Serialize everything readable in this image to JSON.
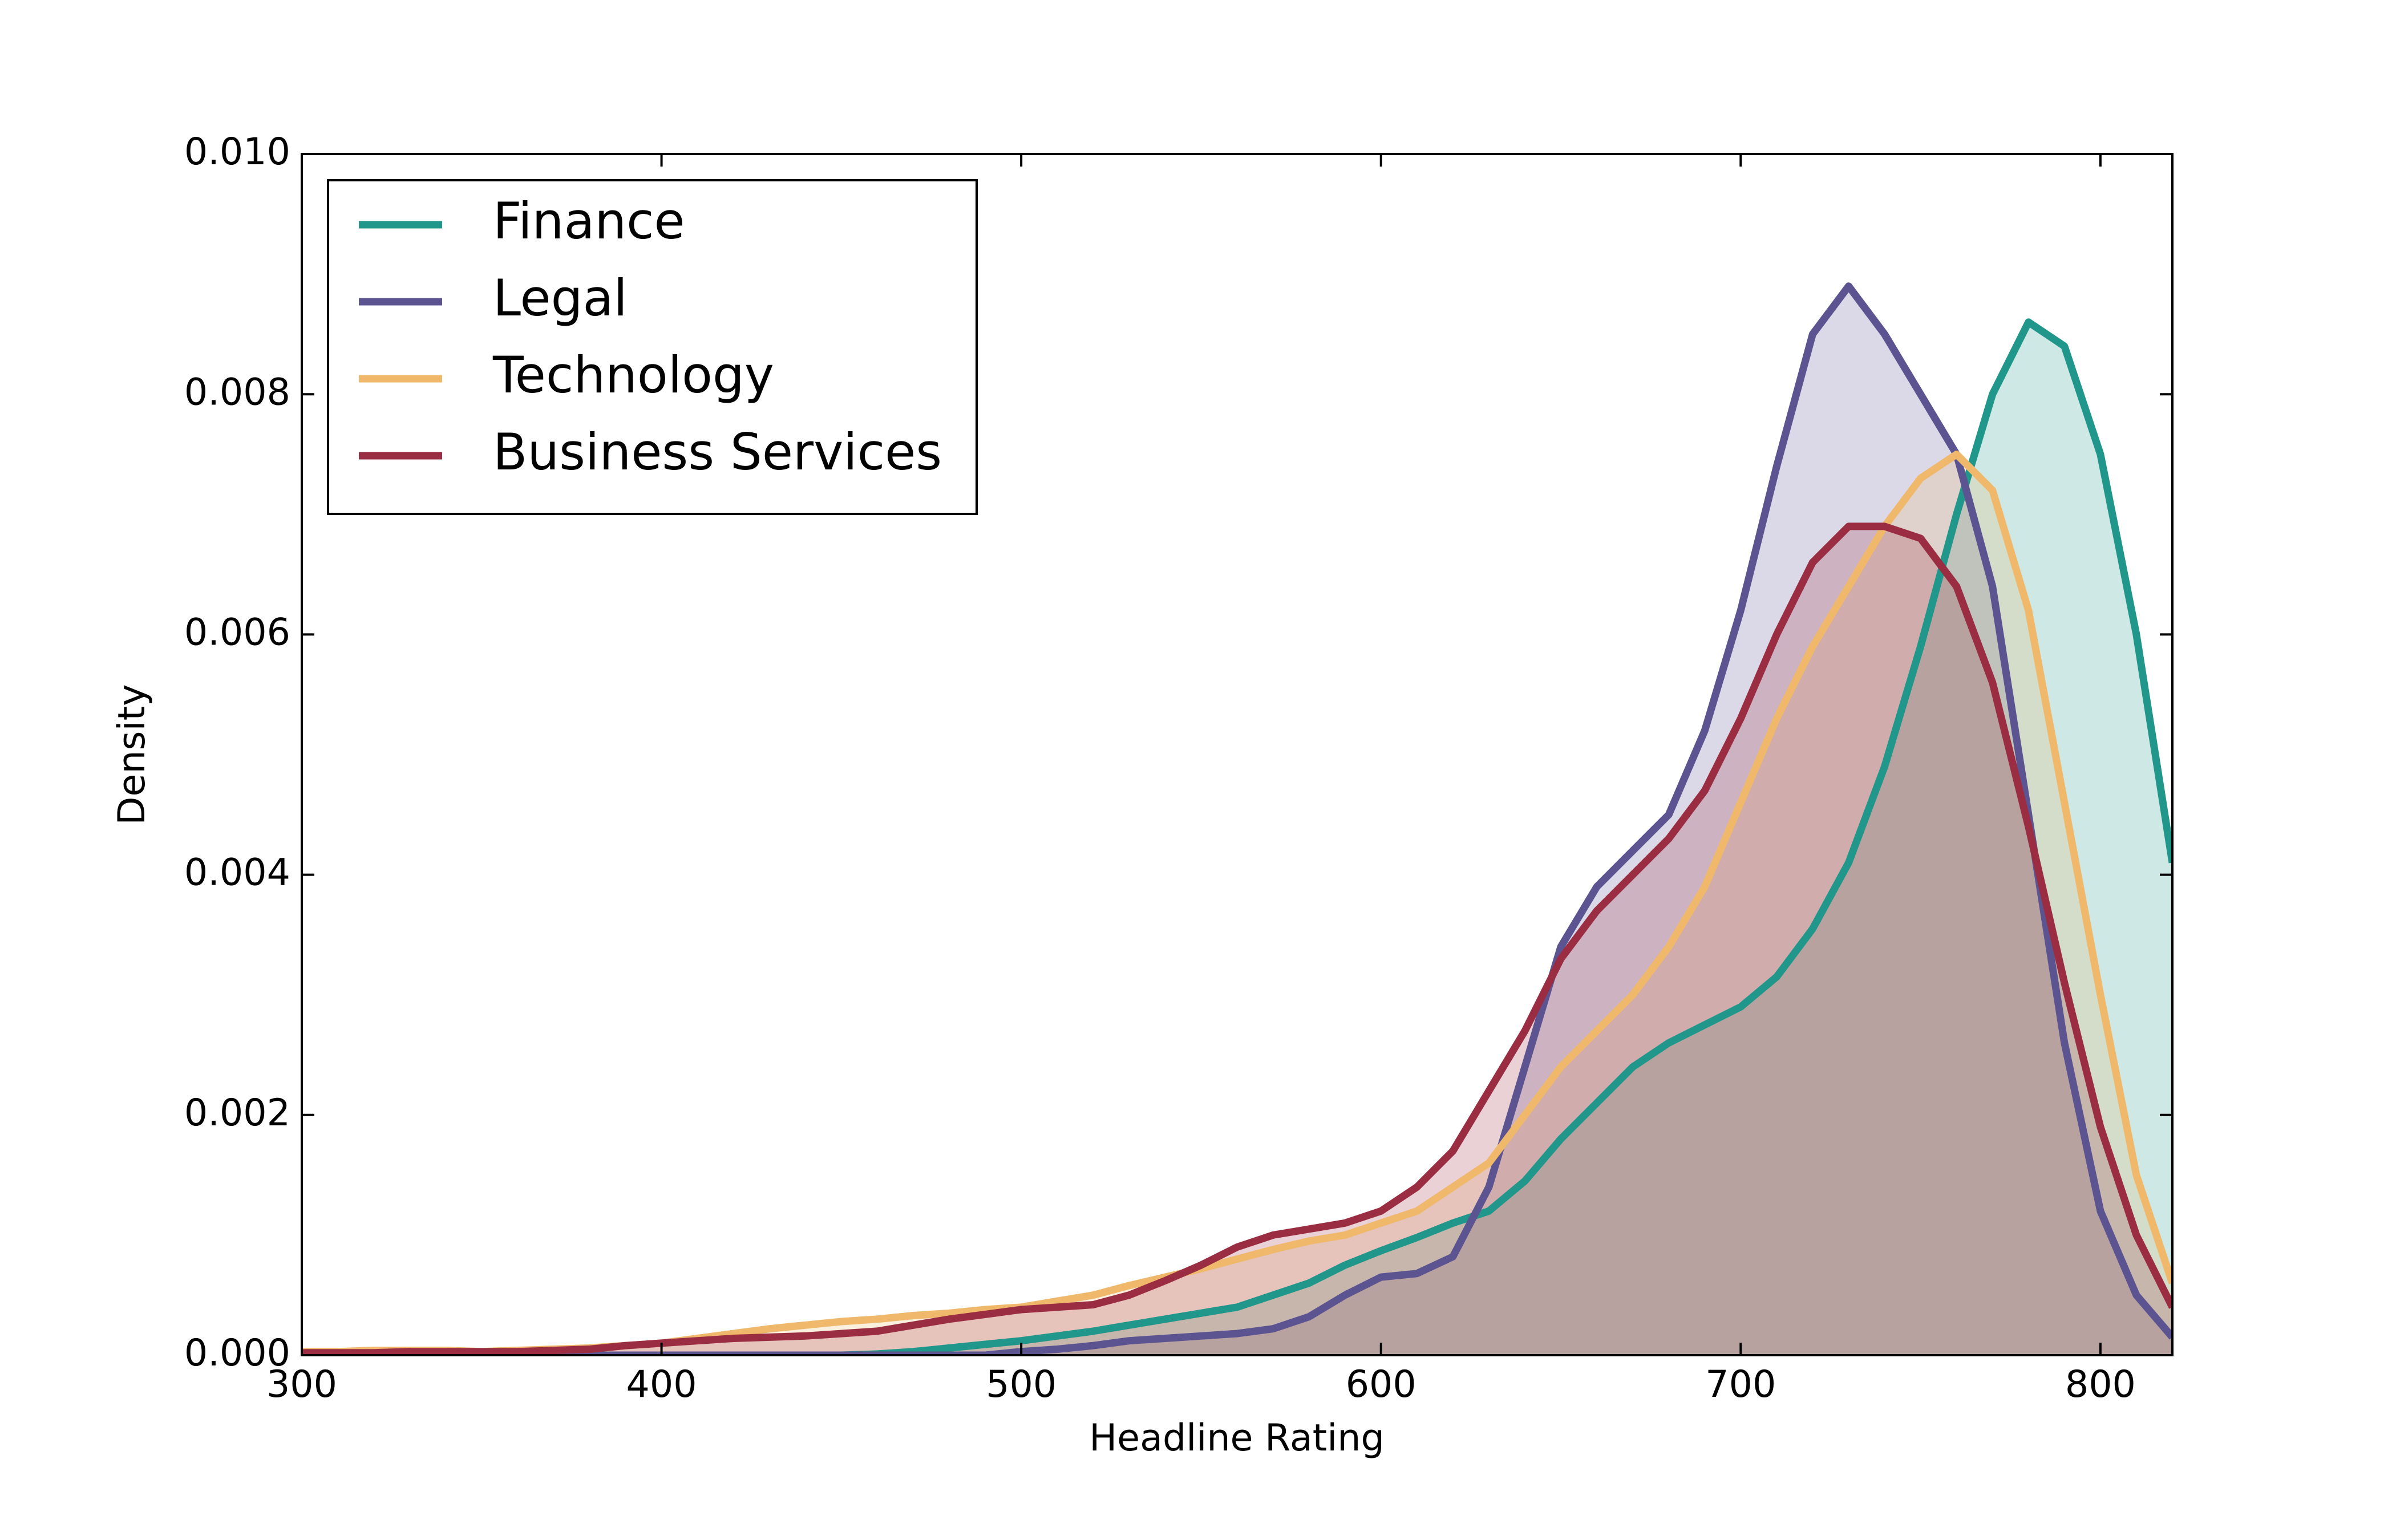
{
  "chart_data": {
    "type": "kde",
    "xlabel": "Headline Rating",
    "ylabel": "Density",
    "x": [
      300,
      310,
      320,
      330,
      340,
      350,
      360,
      370,
      380,
      390,
      400,
      410,
      420,
      430,
      440,
      450,
      460,
      470,
      480,
      490,
      500,
      510,
      520,
      530,
      540,
      550,
      560,
      570,
      580,
      590,
      600,
      610,
      620,
      630,
      640,
      650,
      660,
      670,
      680,
      690,
      700,
      710,
      720,
      730,
      740,
      750,
      760,
      770,
      780,
      790,
      800,
      810,
      820
    ],
    "series": [
      {
        "name": "Finance",
        "color": "#21968a",
        "values": [
          0,
          0,
          0,
          0,
          0,
          0,
          0,
          0,
          0,
          0,
          0,
          0,
          0,
          0,
          0,
          0,
          1e-05,
          3e-05,
          6e-05,
          9e-05,
          0.00012,
          0.00016,
          0.0002,
          0.00025,
          0.0003,
          0.00035,
          0.0004,
          0.0005,
          0.0006,
          0.00075,
          0.00087,
          0.00098,
          0.0011,
          0.0012,
          0.00145,
          0.0018,
          0.0021,
          0.0024,
          0.0026,
          0.00275,
          0.0029,
          0.00315,
          0.00355,
          0.0041,
          0.0049,
          0.0059,
          0.007,
          0.008,
          0.0086,
          0.0084,
          0.0075,
          0.006,
          0.0041
        ]
      },
      {
        "name": "Legal",
        "color": "#5c5391",
        "values": [
          0,
          0,
          0,
          0,
          0,
          0,
          0,
          0,
          0,
          0,
          0,
          0,
          0,
          0,
          0,
          0,
          0,
          0,
          0,
          0,
          3e-05,
          5e-05,
          8e-05,
          0.00012,
          0.00014,
          0.00016,
          0.00018,
          0.00022,
          0.00032,
          0.0005,
          0.00065,
          0.00068,
          0.00082,
          0.0014,
          0.0024,
          0.0034,
          0.0039,
          0.0042,
          0.0045,
          0.0052,
          0.0062,
          0.0074,
          0.0085,
          0.0089,
          0.0085,
          0.008,
          0.0075,
          0.0064,
          0.0045,
          0.0026,
          0.0012,
          0.0005,
          0.00015
        ]
      },
      {
        "name": "Technology",
        "color": "#efb86b",
        "values": [
          3e-05,
          3e-05,
          4e-05,
          4e-05,
          4e-05,
          3e-05,
          4e-05,
          5e-05,
          6e-05,
          8e-05,
          0.0001,
          0.00014,
          0.00018,
          0.00022,
          0.00025,
          0.00028,
          0.0003,
          0.00033,
          0.00035,
          0.00038,
          0.0004,
          0.00045,
          0.0005,
          0.00058,
          0.00065,
          0.00072,
          0.0008,
          0.00088,
          0.00095,
          0.001,
          0.0011,
          0.0012,
          0.0014,
          0.0016,
          0.002,
          0.0024,
          0.0027,
          0.003,
          0.0034,
          0.0039,
          0.0046,
          0.0053,
          0.0059,
          0.0064,
          0.0069,
          0.0073,
          0.0075,
          0.0072,
          0.0062,
          0.0046,
          0.003,
          0.0015,
          0.0006
        ]
      },
      {
        "name": "Business Services",
        "color": "#9a2d42",
        "values": [
          2e-05,
          2e-05,
          2e-05,
          3e-05,
          3e-05,
          3e-05,
          3e-05,
          4e-05,
          5e-05,
          8e-05,
          0.0001,
          0.00012,
          0.00014,
          0.00015,
          0.00016,
          0.00018,
          0.0002,
          0.00025,
          0.0003,
          0.00034,
          0.00038,
          0.0004,
          0.00042,
          0.0005,
          0.00062,
          0.00075,
          0.0009,
          0.001,
          0.00105,
          0.0011,
          0.0012,
          0.0014,
          0.0017,
          0.0022,
          0.0027,
          0.0033,
          0.0037,
          0.004,
          0.0043,
          0.0047,
          0.0053,
          0.006,
          0.0066,
          0.0069,
          0.0069,
          0.0068,
          0.0064,
          0.0056,
          0.0044,
          0.0031,
          0.0019,
          0.001,
          0.0004
        ]
      }
    ],
    "xlim": [
      300,
      820
    ],
    "xticks": [
      300,
      400,
      500,
      600,
      700,
      800
    ],
    "ylim": [
      0,
      0.01
    ],
    "yticks": [
      {
        "value": 0,
        "label": "0.000"
      },
      {
        "value": 0.002,
        "label": "0.002"
      },
      {
        "value": 0.004,
        "label": "0.004"
      },
      {
        "value": 0.006,
        "label": "0.006"
      },
      {
        "value": 0.008,
        "label": "0.008"
      },
      {
        "value": 0.01,
        "label": "0.010"
      }
    ],
    "fill": true,
    "legend": "upper left"
  }
}
